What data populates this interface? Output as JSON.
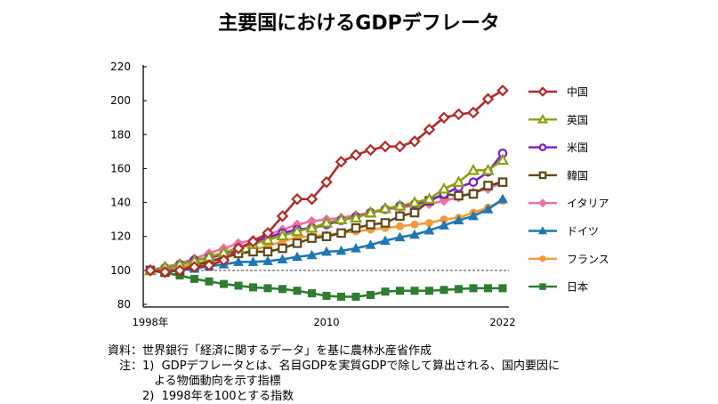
{
  "chart_data": {
    "type": "line",
    "title": "主要国におけるGDPデフレータ",
    "xlabel": "",
    "ylabel": "",
    "x": [
      1998,
      1999,
      2000,
      2001,
      2002,
      2003,
      2004,
      2005,
      2006,
      2007,
      2008,
      2009,
      2010,
      2011,
      2012,
      2013,
      2014,
      2015,
      2016,
      2017,
      2018,
      2019,
      2020,
      2021,
      2022
    ],
    "x_tick_labels": [
      {
        "x": 1998,
        "label": "1998年"
      },
      {
        "x": 2010,
        "label": "2010"
      },
      {
        "x": 2022,
        "label": "2022"
      }
    ],
    "ylim": [
      80,
      220
    ],
    "y_ticks": [
      80,
      100,
      120,
      140,
      160,
      180,
      200,
      220
    ],
    "reference_line": 100,
    "grid": false,
    "legend": "right",
    "series": [
      {
        "name": "中国",
        "color": "#b22a2a",
        "marker": "diamond-open",
        "values": [
          100,
          99,
          100,
          102,
          103,
          106,
          113,
          117,
          122,
          132,
          142,
          142,
          152,
          164,
          168,
          171,
          173,
          173,
          176,
          183,
          190,
          192,
          193,
          201,
          206
        ]
      },
      {
        "name": "英国",
        "color": "#8aa010",
        "marker": "triangle-open",
        "values": [
          100,
          102,
          103.5,
          105.5,
          108,
          110.5,
          113,
          115.5,
          118,
          120.5,
          123,
          125,
          128,
          130,
          131,
          134,
          136.5,
          138,
          140,
          142,
          148,
          152,
          159,
          159,
          165
        ]
      },
      {
        "name": "米国",
        "color": "#7a1fc9",
        "marker": "circle-open",
        "values": [
          100,
          101.5,
          103.5,
          106,
          107.5,
          109.5,
          113,
          116.5,
          119.5,
          122,
          124,
          125,
          127,
          129.5,
          131.5,
          134,
          136,
          138,
          139,
          141,
          145,
          149,
          152,
          158,
          169
        ]
      },
      {
        "name": "韓国",
        "color": "#5e4a1a",
        "marker": "square-open",
        "values": [
          100,
          99,
          100,
          103,
          105,
          107.5,
          110,
          111,
          111,
          113,
          116,
          119,
          120,
          122,
          125,
          127,
          128,
          132,
          134,
          141,
          145,
          144,
          145,
          150,
          152
        ]
      },
      {
        "name": "イタリア",
        "color": "#ee6fa4",
        "marker": "diamond",
        "values": [
          100,
          102,
          104,
          107,
          110,
          113,
          116,
          118,
          121,
          124,
          127,
          129,
          130,
          131,
          132.5,
          134,
          136,
          137,
          138,
          139,
          141,
          143,
          146,
          148,
          152
        ]
      },
      {
        "name": "ドイツ",
        "color": "#1f77b4",
        "marker": "triangle",
        "values": [
          100,
          100.5,
          100,
          101,
          102.5,
          103.5,
          105,
          105,
          105.5,
          106.5,
          108,
          109,
          111,
          111.5,
          113,
          115,
          117.5,
          119.5,
          121,
          123.5,
          126.5,
          129.5,
          132,
          136,
          142
        ]
      },
      {
        "name": "フランス",
        "color": "#f59a3c",
        "marker": "circle",
        "values": [
          100,
          101,
          102,
          104,
          106,
          107.5,
          109.5,
          112,
          114.5,
          117,
          119.5,
          120,
          121,
          122,
          123,
          124,
          125,
          126,
          127,
          128,
          130,
          131,
          134,
          137,
          141
        ]
      },
      {
        "name": "日本",
        "color": "#2e7d32",
        "marker": "square",
        "values": [
          100,
          98.5,
          97,
          95,
          93.5,
          92,
          91,
          90,
          89.5,
          89,
          88,
          86.5,
          85,
          84.5,
          84.5,
          85.5,
          87.5,
          88,
          88,
          88,
          88.5,
          89,
          89.5,
          89.5,
          89.5
        ]
      }
    ]
  },
  "notes": {
    "source": "資料：世界銀行「経済に関するデータ」を基に農林水産省作成",
    "note1": "　注：1)  GDPデフレータとは、名目GDPを実質GDPで除して算出される、国内要因に",
    "note1b": "　　　　よる物価動向を示す指標",
    "note2": "　　　2)  1998年を100とする指数"
  }
}
